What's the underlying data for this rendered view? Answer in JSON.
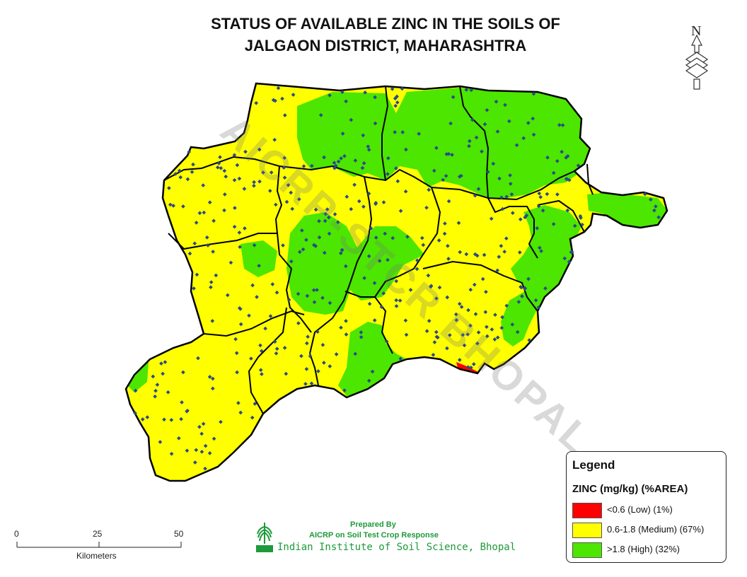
{
  "title": {
    "line1": "STATUS OF AVAILABLE ZINC IN THE SOILS OF",
    "line2": "JALGAON DISTRICT, MAHARASHTRA"
  },
  "north_arrow": {
    "letter": "N",
    "icon": "north-arrow-icon"
  },
  "watermark": "AICRP-STCR BHOPAL",
  "legend": {
    "title": "Legend",
    "subtitle": "ZINC (mg/kg) (%AREA)",
    "items": [
      {
        "label": "<0.6 (Low) (1%)",
        "color": "#ff0000"
      },
      {
        "label": "0.6-1.8 (Medium) (67%)",
        "color": "#ffff00"
      },
      {
        "label": ">1.8 (High) (32%)",
        "color": "#4ce600"
      }
    ]
  },
  "scale_bar": {
    "ticks": [
      "0",
      "25",
      "50"
    ],
    "unit": "Kilometers"
  },
  "credit": {
    "prepared_by": "Prepared By",
    "program": "AICRP on Soil Test Crop Response",
    "institute": "Indian Institute of Soil Science, Bhopal",
    "logo_icon": "icar-wheat-logo-icon"
  },
  "colors": {
    "low": "#ff0000",
    "medium": "#ffff00",
    "high": "#4ce600",
    "sample_point": "#2a4a8a",
    "boundary": "#000000"
  }
}
